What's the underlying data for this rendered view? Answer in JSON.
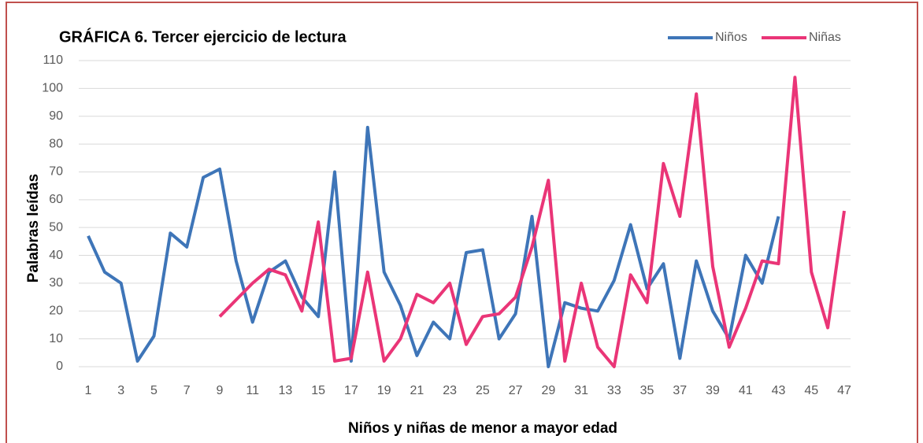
{
  "chart_data": {
    "type": "line",
    "title": "GRÁFICA 6. Tercer ejercicio de lectura",
    "x_label": "Niños y niñas de menor a mayor edad",
    "y_label": "Palabras leídas",
    "categories": [
      "1",
      null,
      "3",
      null,
      "5",
      null,
      "7",
      null,
      "9",
      null,
      "11",
      null,
      "13",
      null,
      "15",
      null,
      "17",
      null,
      "19",
      null,
      "21",
      null,
      "23",
      null,
      "25",
      null,
      "27",
      null,
      "29",
      null,
      "31",
      null,
      "33",
      null,
      "35",
      null,
      "37",
      null,
      "39",
      null,
      "41",
      null,
      "43",
      null,
      "45",
      null,
      "47"
    ],
    "series": [
      {
        "name": "Niños",
        "color": "#3e75b8",
        "values": [
          47,
          34,
          30,
          2,
          11,
          48,
          43,
          68,
          71,
          38,
          16,
          34,
          38,
          25,
          18,
          70,
          2,
          86,
          34,
          22,
          4,
          16,
          10,
          41,
          42,
          10,
          19,
          54,
          0,
          23,
          21,
          20,
          31,
          51,
          28,
          37,
          3,
          38,
          20,
          10,
          40,
          30,
          54,
          null,
          null,
          null,
          null
        ]
      },
      {
        "name": "Niñas",
        "color": "#ea3577",
        "values": [
          null,
          null,
          null,
          null,
          null,
          null,
          null,
          null,
          18,
          24,
          30,
          35,
          33,
          20,
          52,
          2,
          3,
          34,
          2,
          10,
          26,
          23,
          30,
          8,
          18,
          19,
          25,
          43,
          67,
          2,
          30,
          7,
          0,
          33,
          23,
          73,
          54,
          98,
          36,
          7,
          21,
          38,
          37,
          104,
          34,
          14,
          56
        ]
      }
    ],
    "ylim": [
      0,
      110
    ],
    "yticks": [
      0,
      10,
      20,
      30,
      40,
      50,
      60,
      70,
      80,
      90,
      100,
      110
    ],
    "grid": true,
    "legend": "top-right"
  }
}
